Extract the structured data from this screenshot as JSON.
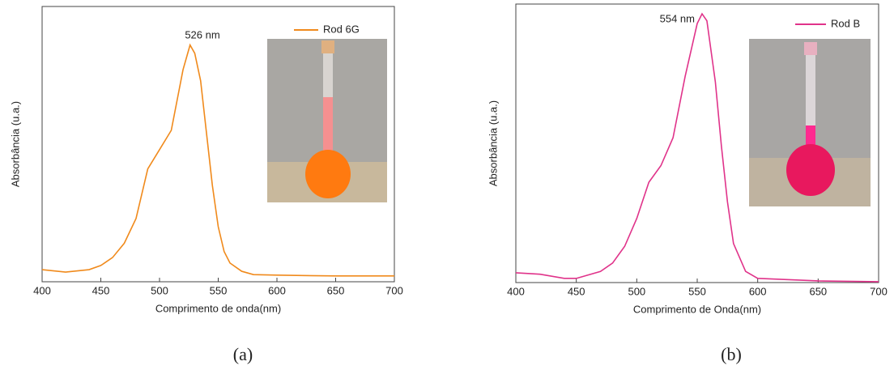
{
  "chart_data": [
    {
      "type": "line",
      "x_label": "Comprimento de onda(nm)",
      "y_label": "Absorbância (u.a.)",
      "annotation": "526 nm",
      "caption": "(a)",
      "x": [
        400,
        420,
        440,
        450,
        460,
        470,
        480,
        490,
        500,
        510,
        515,
        520,
        526,
        530,
        535,
        540,
        545,
        550,
        555,
        560,
        570,
        580,
        600,
        650,
        700
      ],
      "series": [
        {
          "name": "Rod 6G",
          "color": "#f08a1c",
          "values": [
            0.044,
            0.035,
            0.044,
            0.059,
            0.088,
            0.14,
            0.23,
            0.41,
            0.48,
            0.55,
            0.66,
            0.77,
            0.86,
            0.83,
            0.73,
            0.54,
            0.35,
            0.2,
            0.11,
            0.068,
            0.038,
            0.026,
            0.024,
            0.021,
            0.021
          ]
        }
      ],
      "xlim": [
        400,
        700
      ],
      "xticks": [
        400,
        450,
        500,
        550,
        600,
        650,
        700
      ],
      "ylim": [
        0,
        1
      ]
    },
    {
      "type": "line",
      "x_label": "Comprimento de Onda(nm)",
      "y_label": "Absorbância (u.a.)",
      "annotation": "554 nm",
      "caption": "(b)",
      "x": [
        400,
        420,
        440,
        450,
        470,
        480,
        490,
        500,
        510,
        520,
        530,
        540,
        550,
        554,
        558,
        565,
        570,
        575,
        580,
        590,
        600,
        650,
        700
      ],
      "series": [
        {
          "name": "Rod B",
          "color": "#e0338a",
          "values": [
            0.035,
            0.03,
            0.015,
            0.015,
            0.04,
            0.07,
            0.13,
            0.23,
            0.36,
            0.42,
            0.52,
            0.74,
            0.93,
            0.965,
            0.94,
            0.72,
            0.49,
            0.29,
            0.14,
            0.04,
            0.015,
            0.006,
            0.003
          ]
        }
      ],
      "xlim": [
        400,
        700
      ],
      "xticks": [
        400,
        450,
        500,
        550,
        600,
        650,
        700
      ],
      "ylim": [
        0,
        1
      ]
    }
  ]
}
